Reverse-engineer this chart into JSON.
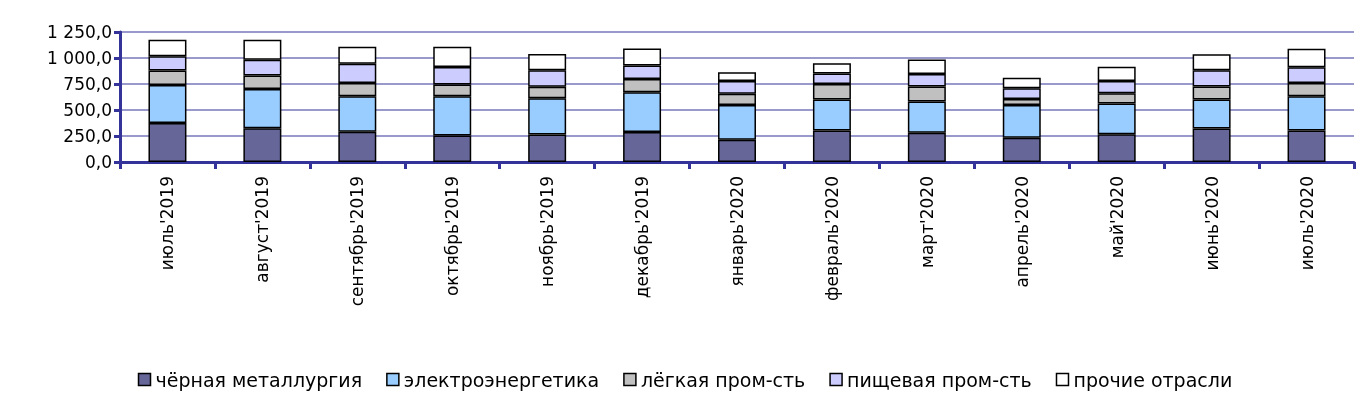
{
  "chart_data": {
    "type": "bar",
    "stacked": true,
    "categories": [
      "июль'2019",
      "август'2019",
      "сентябрь'2019",
      "октябрь'2019",
      "ноябрь'2019",
      "декабрь'2019",
      "январь'2020",
      "февраль'2020",
      "март'2020",
      "апрель'2020",
      "май'2020",
      "июнь'2020",
      "июль'2020"
    ],
    "series": [
      {
        "name": "чёрная металлургия",
        "color": "#666699",
        "values": [
          375,
          325,
          290,
          255,
          265,
          288,
          215,
          303,
          282,
          232,
          268,
          321,
          303
        ]
      },
      {
        "name": "электроэнергетика",
        "color": "#99ccff",
        "values": [
          365,
          377,
          342,
          377,
          347,
          382,
          332,
          297,
          300,
          315,
          294,
          279,
          329
        ]
      },
      {
        "name": "лёгкая пром-сть",
        "color": "#c0c0c0",
        "values": [
          140,
          130,
          128,
          113,
          112,
          127,
          109,
          150,
          144,
          59,
          100,
          126,
          127
        ]
      },
      {
        "name": "пищевая пром-сть",
        "color": "#ccccff",
        "values": [
          138,
          151,
          185,
          168,
          158,
          132,
          123,
          100,
          121,
          103,
          117,
          156,
          153
        ]
      },
      {
        "name": "прочие отрасли",
        "color": "#ffffff",
        "values": [
          157,
          192,
          163,
          195,
          156,
          162,
          83,
          100,
          138,
          100,
          136,
          153,
          176
        ]
      }
    ],
    "ylim": [
      0,
      1250
    ],
    "yticks": [
      {
        "value": 0,
        "label": "0,0"
      },
      {
        "value": 250,
        "label": "250,0"
      },
      {
        "value": 500,
        "label": "500,0"
      },
      {
        "value": 750,
        "label": "750,0"
      },
      {
        "value": 1000,
        "label": "1 000,0"
      },
      {
        "value": 1250,
        "label": "1 250,0"
      }
    ],
    "grid": "y",
    "legend": "bottom"
  }
}
